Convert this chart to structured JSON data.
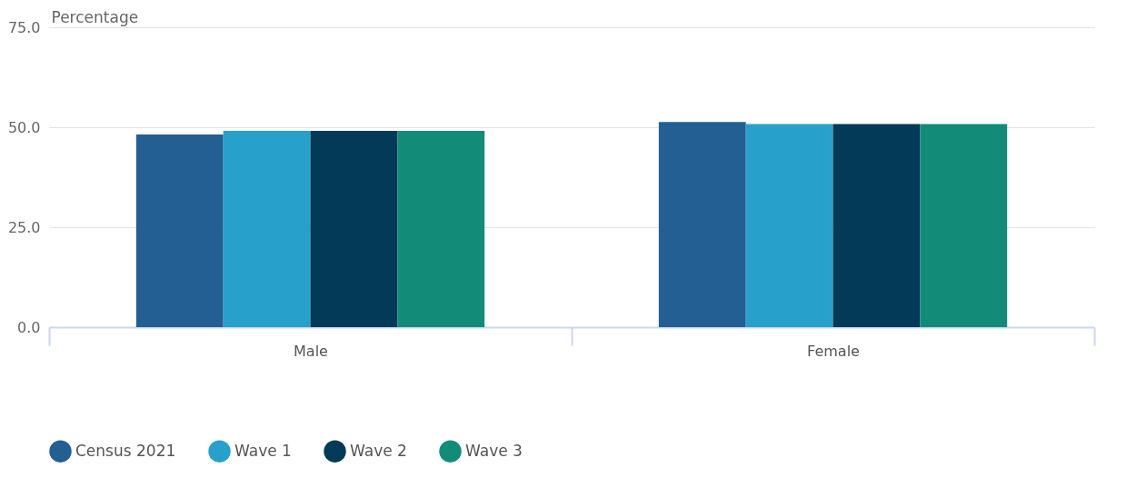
{
  "chart_data": {
    "type": "bar",
    "ylabel": "Percentage",
    "categories": [
      "Male",
      "Female"
    ],
    "series": [
      {
        "name": "Census 2021",
        "color": "#235f92",
        "values": [
          48.2,
          51.3
        ]
      },
      {
        "name": "Wave 1",
        "color": "#28a0cc",
        "values": [
          49.1,
          50.8
        ]
      },
      {
        "name": "Wave 2",
        "color": "#033a57",
        "values": [
          49.1,
          50.8
        ]
      },
      {
        "name": "Wave 3",
        "color": "#138b79",
        "values": [
          49.1,
          50.8
        ]
      }
    ],
    "ylim": [
      0,
      75
    ],
    "yticks": [
      {
        "value": 0,
        "label": "0.0"
      },
      {
        "value": 25,
        "label": "25.0"
      },
      {
        "value": 50,
        "label": "50.0"
      },
      {
        "value": 75,
        "label": "75.0"
      }
    ],
    "grid": "y",
    "legend": "bottom"
  }
}
